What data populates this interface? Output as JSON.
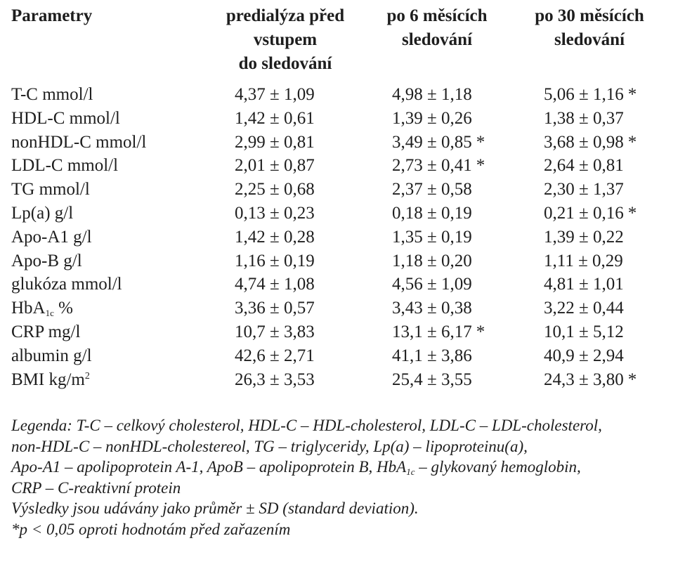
{
  "table": {
    "headers": {
      "param": "Parametry",
      "col1": [
        "predialýza před",
        "vstupem",
        "do sledování"
      ],
      "col2": [
        "po 6 měsících",
        "sledování"
      ],
      "col3": [
        "po 30 měsících",
        "sledování"
      ]
    },
    "rows": [
      {
        "label": "T-C mmol/l",
        "v1": "4,37 ± 1,09",
        "v2": "4,98 ± 1,18",
        "v3": "5,06 ± 1,16",
        "s1": "",
        "s2": "",
        "s3": "*"
      },
      {
        "label": "HDL-C mmol/l",
        "v1": "1,42 ± 0,61",
        "v2": "1,39 ± 0,26",
        "v3": "1,38 ± 0,37",
        "s1": "",
        "s2": "",
        "s3": ""
      },
      {
        "label": "nonHDL-C mmol/l",
        "v1": "2,99 ± 0,81",
        "v2": "3,49 ± 0,85",
        "v3": "3,68 ± 0,98",
        "s1": "",
        "s2": "*",
        "s3": "*"
      },
      {
        "label": "LDL-C mmol/l",
        "v1": "2,01 ± 0,87",
        "v2": "2,73 ± 0,41",
        "v3": "2,64 ± 0,81",
        "s1": "",
        "s2": "*",
        "s3": ""
      },
      {
        "label": "TG mmol/l",
        "v1": "2,25 ± 0,68",
        "v2": "2,37 ± 0,58",
        "v3": "2,30 ± 1,37",
        "s1": "",
        "s2": "",
        "s3": ""
      },
      {
        "label": "Lp(a) g/l",
        "v1": "0,13 ± 0,23",
        "v2": "0,18 ± 0,19",
        "v3": "0,21 ± 0,16",
        "s1": "",
        "s2": "",
        "s3": "*"
      },
      {
        "label": "Apo-A1 g/l",
        "v1": "1,42 ± 0,28",
        "v2": "1,35 ± 0,19",
        "v3": "1,39 ± 0,22",
        "s1": "",
        "s2": "",
        "s3": ""
      },
      {
        "label": "Apo-B g/l",
        "v1": "1,16 ± 0,19",
        "v2": "1,18 ± 0,20",
        "v3": "1,11 ± 0,29",
        "s1": "",
        "s2": "",
        "s3": ""
      },
      {
        "label": "glukóza mmol/l",
        "v1": "4,74 ± 1,08",
        "v2": "4,56 ± 1,09",
        "v3": "4,81 ± 1,01",
        "s1": "",
        "s2": "",
        "s3": ""
      },
      {
        "label_main": "HbA",
        "label_sub": "1c",
        "label_rest": " %",
        "v1": "3,36 ± 0,57",
        "v2": "3,43 ± 0,38",
        "v3": "3,22 ± 0,44",
        "s1": "",
        "s2": "",
        "s3": ""
      },
      {
        "label": "CRP mg/l",
        "v1": "10,7 ± 3,83",
        "v2": "13,1 ± 6,17",
        "v3": "10,1 ± 5,12",
        "s1": "",
        "s2": "*",
        "s3": ""
      },
      {
        "label": "albumin g/l",
        "v1": "42,6 ± 2,71",
        "v2": "41,1 ± 3,86",
        "v3": "40,9 ± 2,94",
        "s1": "",
        "s2": "",
        "s3": ""
      },
      {
        "label_main": "BMI kg/m",
        "label_sup": "2",
        "v1": "26,3 ± 3,53",
        "v2": "25,4 ± 3,55",
        "v3": "24,3 ± 3,80",
        "s1": "",
        "s2": "",
        "s3": "*"
      }
    ]
  },
  "legend": {
    "line1": "Legenda: T-C – celkový cholesterol, HDL-C – HDL-cholesterol, LDL-C – LDL-cholesterol,",
    "line2": "non-HDL-C – nonHDL-cholestereol, TG – triglyceridy, Lp(a) – lipoproteinu(a),",
    "line3_a": "Apo-A1 – apolipoprotein A-1, ApoB – apolipoprotein B,  HbA",
    "line3_sub": "1c",
    "line3_b": " – glykovaný hemoglobin,",
    "line4": "CRP – C-reaktivní protein",
    "line5": "Výsledky jsou udávány jako průměr ± SD (standard deviation).",
    "line6": "*p < 0,05 oproti hodnotám před zařazením"
  }
}
